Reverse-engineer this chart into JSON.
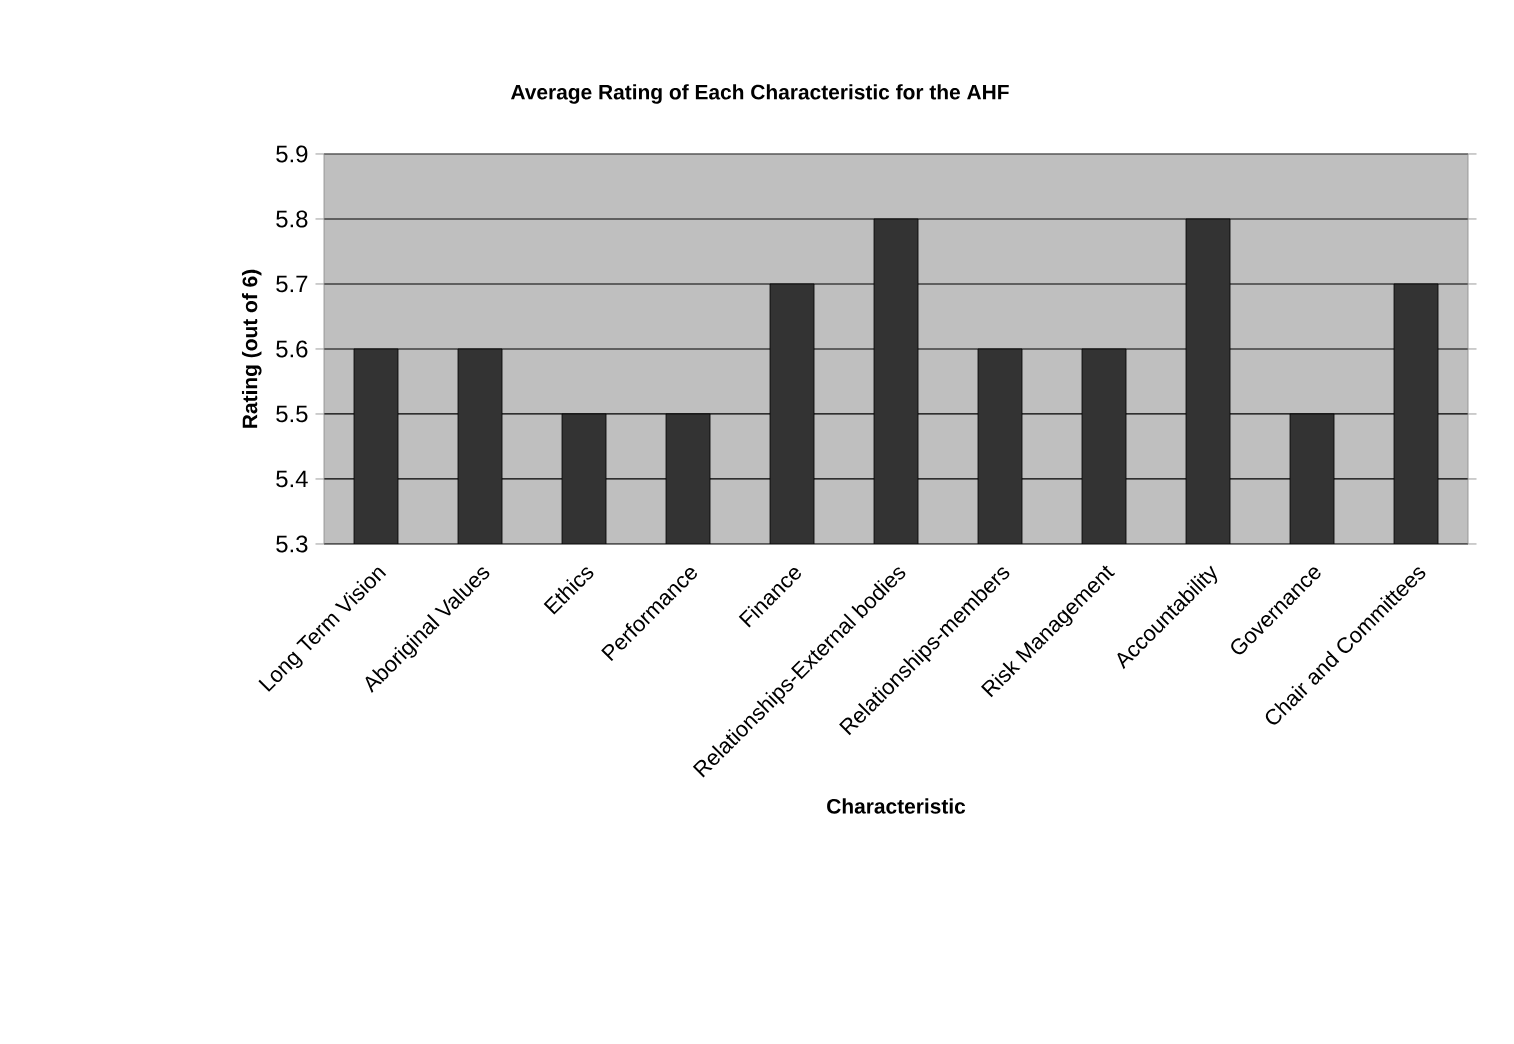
{
  "chart_data": {
    "type": "bar",
    "title": "Average Rating of Each Characteristic for the AHF",
    "xlabel": "Characteristic",
    "ylabel": "Rating (out of 6)",
    "categories": [
      "Long Term Vision",
      "Aboriginal Values",
      "Ethics",
      "Performance",
      "Finance",
      "Relationships-External bodies",
      "Relationships-members",
      "Risk Management",
      "Accountability",
      "Governance",
      "Chair and Committees"
    ],
    "values": [
      5.6,
      5.6,
      5.5,
      5.5,
      5.7,
      5.8,
      5.6,
      5.6,
      5.8,
      5.5,
      5.7
    ],
    "color": "#333333",
    "ylim": [
      5.3,
      5.9
    ],
    "yticks": [
      5.3,
      5.4,
      5.5,
      5.6,
      5.7,
      5.8,
      5.9
    ],
    "grid": "y"
  }
}
